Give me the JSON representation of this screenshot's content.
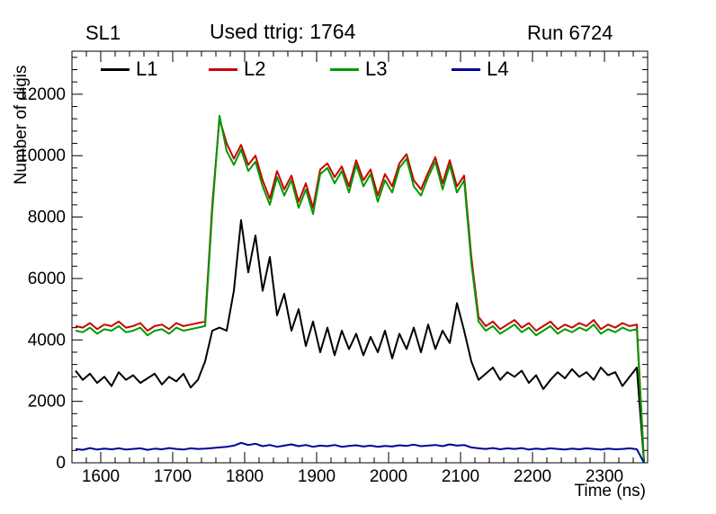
{
  "titles": {
    "left": "SL1",
    "center": "Used ttrig: 1764",
    "right": "Run 6724"
  },
  "axes": {
    "y_label": "Number of digis",
    "x_label": "Time (ns)",
    "x_ticks": [
      1600,
      1700,
      1800,
      1900,
      2000,
      2100,
      2200,
      2300
    ],
    "y_ticks": [
      0,
      2000,
      4000,
      6000,
      8000,
      10000,
      12000
    ],
    "xlim": [
      1560,
      2360
    ],
    "ylim": [
      0,
      13400
    ]
  },
  "legend": {
    "entries": [
      {
        "label": "L1",
        "color": "#000000"
      },
      {
        "label": "L2",
        "color": "#cc0000"
      },
      {
        "label": "L3",
        "color": "#009900"
      },
      {
        "label": "L4",
        "color": "#000099"
      }
    ]
  },
  "chart_data": {
    "type": "line",
    "title": "Used ttrig: 1764",
    "xlabel": "Time (ns)",
    "ylabel": "Number of digis",
    "xlim": [
      1560,
      2360
    ],
    "ylim": [
      0,
      13400
    ],
    "grid": false,
    "legend_position": "top-inside-horizontal",
    "x": [
      1565,
      1575,
      1585,
      1595,
      1605,
      1615,
      1625,
      1635,
      1645,
      1655,
      1665,
      1675,
      1685,
      1695,
      1705,
      1715,
      1725,
      1735,
      1745,
      1755,
      1765,
      1775,
      1785,
      1795,
      1805,
      1815,
      1825,
      1835,
      1845,
      1855,
      1865,
      1875,
      1885,
      1895,
      1905,
      1915,
      1925,
      1935,
      1945,
      1955,
      1965,
      1975,
      1985,
      1995,
      2005,
      2015,
      2025,
      2035,
      2045,
      2055,
      2065,
      2075,
      2085,
      2095,
      2105,
      2115,
      2125,
      2135,
      2145,
      2155,
      2165,
      2175,
      2185,
      2195,
      2205,
      2215,
      2225,
      2235,
      2245,
      2255,
      2265,
      2275,
      2285,
      2295,
      2305,
      2315,
      2325,
      2335,
      2345,
      2355
    ],
    "series": [
      {
        "name": "L1",
        "color": "#000000",
        "values": [
          3000,
          2700,
          2900,
          2600,
          2800,
          2500,
          2950,
          2700,
          2850,
          2600,
          2750,
          2900,
          2550,
          2800,
          2650,
          2900,
          2450,
          2700,
          3300,
          4300,
          4400,
          4300,
          5600,
          7900,
          6200,
          7400,
          5600,
          6700,
          4800,
          5500,
          4300,
          5000,
          3800,
          4600,
          3600,
          4400,
          3500,
          4300,
          3700,
          4200,
          3500,
          4100,
          3600,
          4300,
          3400,
          4200,
          3700,
          4400,
          3600,
          4500,
          3700,
          4300,
          3900,
          5200,
          4300,
          3300,
          2700,
          2900,
          3100,
          2700,
          2950,
          2800,
          3000,
          2600,
          2850,
          2400,
          2700,
          2950,
          2750,
          3050,
          2800,
          2950,
          2700,
          3100,
          2850,
          2950,
          2500,
          2800,
          3100,
          0
        ]
      },
      {
        "name": "L2",
        "color": "#cc0000",
        "values": [
          4450,
          4400,
          4550,
          4350,
          4500,
          4450,
          4600,
          4400,
          4450,
          4550,
          4300,
          4450,
          4500,
          4350,
          4550,
          4450,
          4500,
          4550,
          4600,
          8400,
          11200,
          10400,
          9900,
          10350,
          9700,
          10000,
          9200,
          8600,
          9500,
          8900,
          9350,
          8500,
          9100,
          8300,
          9550,
          9750,
          9300,
          9650,
          9000,
          9850,
          9200,
          9550,
          8700,
          9400,
          9000,
          9750,
          10050,
          9200,
          8900,
          9450,
          9950,
          9100,
          9850,
          9000,
          9350,
          6700,
          4750,
          4450,
          4600,
          4350,
          4500,
          4650,
          4400,
          4550,
          4300,
          4450,
          4600,
          4350,
          4500,
          4400,
          4550,
          4450,
          4650,
          4350,
          4500,
          4400,
          4550,
          4450,
          4500,
          0
        ]
      },
      {
        "name": "L3",
        "color": "#009900",
        "values": [
          4300,
          4250,
          4400,
          4200,
          4350,
          4300,
          4450,
          4250,
          4300,
          4400,
          4150,
          4300,
          4350,
          4200,
          4400,
          4300,
          4350,
          4400,
          4450,
          8200,
          11300,
          10150,
          9700,
          10200,
          9500,
          9800,
          9000,
          8400,
          9300,
          8700,
          9200,
          8300,
          8900,
          8100,
          9400,
          9600,
          9100,
          9500,
          8800,
          9700,
          9000,
          9400,
          8500,
          9200,
          8800,
          9600,
          9900,
          9000,
          8700,
          9300,
          9800,
          8900,
          9700,
          8800,
          9200,
          6500,
          4600,
          4300,
          4450,
          4200,
          4350,
          4500,
          4250,
          4400,
          4150,
          4300,
          4450,
          4200,
          4350,
          4250,
          4400,
          4300,
          4500,
          4200,
          4350,
          4250,
          4400,
          4300,
          4350,
          0
        ]
      },
      {
        "name": "L4",
        "color": "#000099",
        "values": [
          450,
          420,
          480,
          430,
          460,
          440,
          470,
          430,
          450,
          470,
          420,
          460,
          440,
          480,
          450,
          430,
          470,
          450,
          460,
          480,
          500,
          520,
          560,
          650,
          580,
          620,
          540,
          580,
          520,
          560,
          600,
          540,
          580,
          520,
          560,
          540,
          580,
          520,
          550,
          570,
          530,
          560,
          520,
          550,
          530,
          570,
          550,
          590,
          540,
          560,
          580,
          540,
          600,
          560,
          580,
          500,
          470,
          450,
          480,
          440,
          470,
          450,
          480,
          430,
          460,
          440,
          470,
          450,
          430,
          460,
          440,
          470,
          450,
          430,
          460,
          440,
          450,
          470,
          440,
          0
        ]
      }
    ]
  }
}
